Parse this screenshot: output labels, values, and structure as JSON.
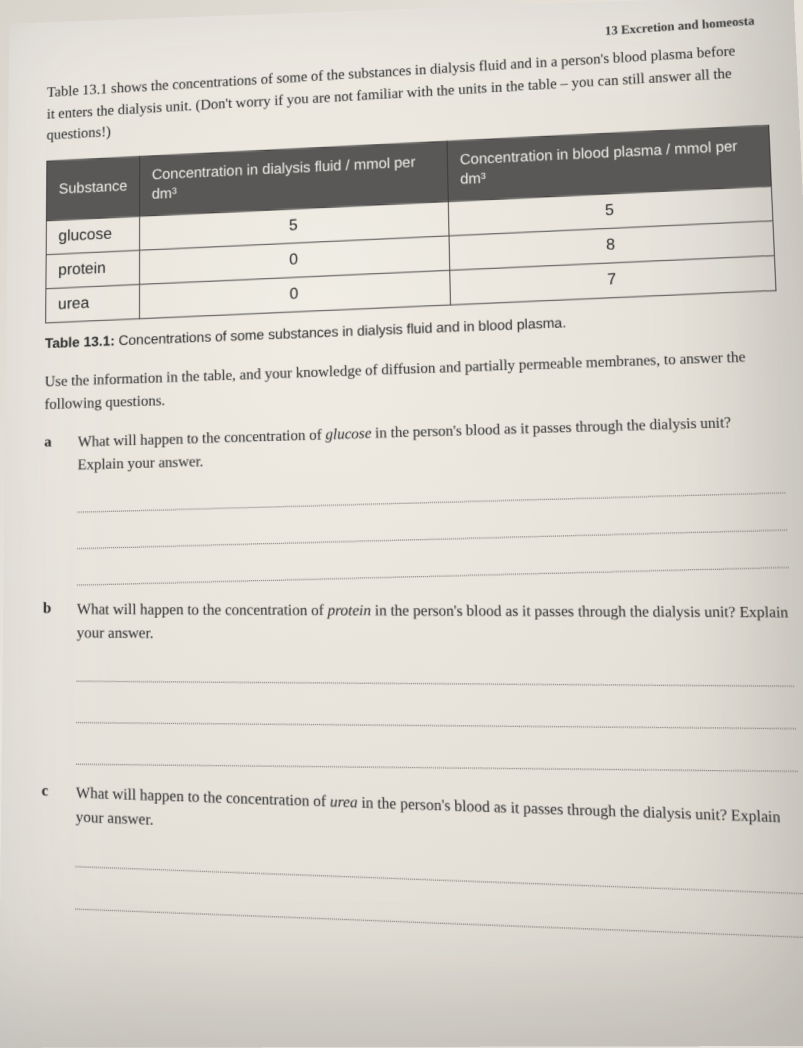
{
  "header": {
    "chapter": "13  Excretion and homeosta"
  },
  "intro": "Table 13.1 shows the concentrations of some of the substances in dialysis fluid and in a person's blood plasma before it enters the dialysis unit. (Don't worry if you are not familiar with the units in the table – you can still answer all the questions!)",
  "table": {
    "columns": [
      "Substance",
      "Concentration in dialysis fluid / mmol per dm³",
      "Concentration in blood plasma / mmol per dm³"
    ],
    "rows": [
      {
        "substance": "glucose",
        "dialysis": "5",
        "plasma": "5"
      },
      {
        "substance": "protein",
        "dialysis": "0",
        "plasma": "8"
      },
      {
        "substance": "urea",
        "dialysis": "0",
        "plasma": "7"
      }
    ],
    "header_bg": "#5a5856",
    "header_fg": "#f0f0ec",
    "border_color": "#4a4846"
  },
  "caption": {
    "label": "Table 13.1:",
    "text": " Concentrations of some substances in dialysis fluid and in blood plasma."
  },
  "instruction": "Use the information in the table, and your knowledge of diffusion and partially permeable membranes, to answer the following questions.",
  "questions": {
    "a": {
      "label": "a",
      "pre": "What will happen to the concentration of ",
      "em": "glucose",
      "post": " in the person's blood as it passes through the dialysis unit? Explain your answer.",
      "lines": 3
    },
    "b": {
      "label": "b",
      "pre": "What will happen to the concentration of ",
      "em": "protein",
      "post": " in the person's blood as it passes through the dialysis unit? Explain your answer.",
      "lines": 3
    },
    "c": {
      "label": "c",
      "pre": "What will happen to the concentration of ",
      "em": "urea",
      "post": " in the person's blood as it passes through the dialysis unit? Explain your answer.",
      "lines": 2
    }
  },
  "colors": {
    "page_bg_light": "#f0ece4",
    "page_bg_dark": "#d4d0c8",
    "text": "#2a2a2a",
    "dotted_line": "#6a6866"
  },
  "typography": {
    "body_font": "Georgia, Times New Roman, serif",
    "table_font": "Arial, Helvetica, sans-serif",
    "body_size_pt": 15,
    "caption_size_pt": 14,
    "header_size_pt": 13
  }
}
